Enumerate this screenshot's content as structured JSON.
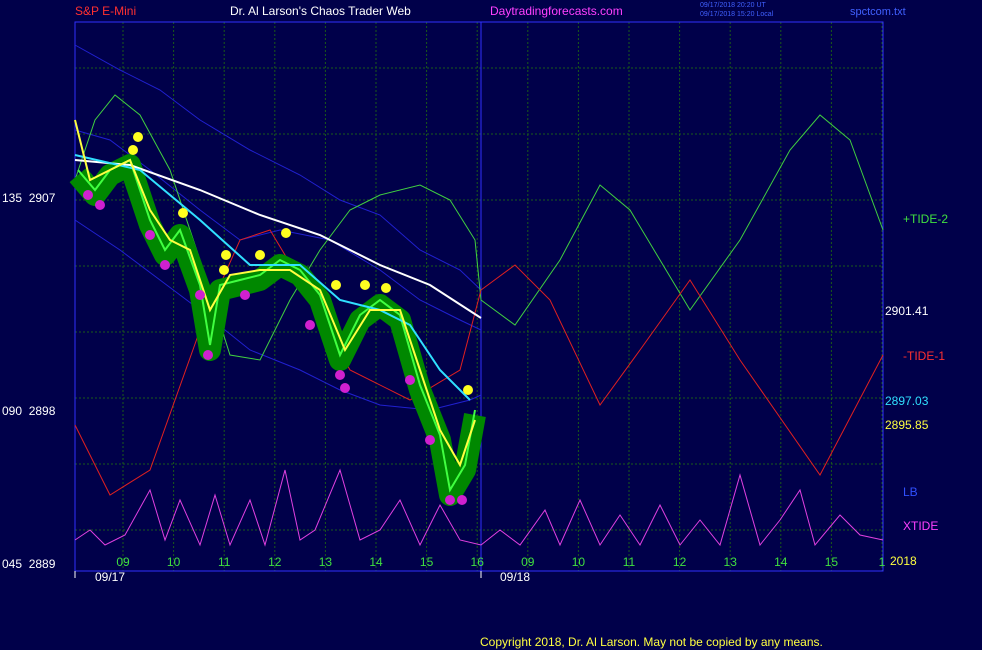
{
  "header": {
    "symbol": "S&P E-Mini",
    "site_name": "Dr. Al Larson's Chaos Trader Web",
    "url": "Daytradingforecasts.com",
    "time_ut": "09/17/2018 20:20 UT",
    "time_local": "09/17/2018 15:20 Local",
    "file": "spctcom.txt"
  },
  "left_labels": [
    "135  2907",
    "090  2898",
    "045  2889"
  ],
  "right_labels": {
    "tide2": "+TIDE-2",
    "price1": "2901.41",
    "tide1": "-TIDE-1",
    "price2": "2897.03",
    "price3": "2895.85",
    "lb": "LB",
    "xtide": "XTIDE",
    "year": "2018"
  },
  "hour_labels": [
    "09",
    "10",
    "11",
    "12",
    "13",
    "14",
    "15",
    "16",
    "09",
    "10",
    "11",
    "12",
    "13",
    "14",
    "15",
    "1"
  ],
  "dates": [
    "09/17",
    "09/18"
  ],
  "copyright": "Copyright 2018, Dr. Al Larson. May not be copied by any means."
}
